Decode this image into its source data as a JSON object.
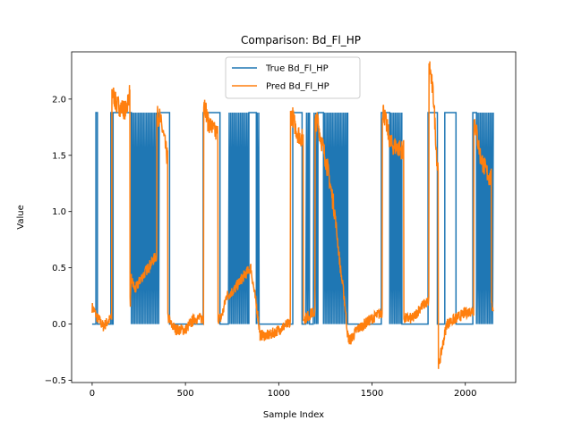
{
  "chart_data": {
    "type": "line",
    "title": "Comparison: Bd_Fl_HP",
    "xlabel": "Sample Index",
    "ylabel": "Value",
    "xlim": [
      -110,
      2270
    ],
    "ylim": [
      -0.52,
      2.42
    ],
    "xticks": [
      0,
      500,
      1000,
      1500,
      2000
    ],
    "yticks": [
      -0.5,
      0.0,
      0.5,
      1.0,
      1.5,
      2.0
    ],
    "xtick_labels": [
      "0",
      "500",
      "1000",
      "1500",
      "2000"
    ],
    "ytick_labels": [
      "−0.5",
      "0.0",
      "0.5",
      "1.0",
      "1.5",
      "2.0"
    ],
    "grid": false,
    "legend_position": "top-center",
    "series": [
      {
        "name": "True Bd_Fl_HP",
        "color": "#1f77b4",
        "kind": "binary",
        "low": 0.0,
        "high": 1.88,
        "x_start": 0,
        "x_end": 2150,
        "segments": [
          [
            0,
            20,
            "low"
          ],
          [
            20,
            28,
            "high"
          ],
          [
            28,
            100,
            "low"
          ],
          [
            100,
            108,
            "high"
          ],
          [
            108,
            112,
            "low"
          ],
          [
            112,
            210,
            "high"
          ],
          [
            210,
            360,
            "osc"
          ],
          [
            360,
            415,
            "high"
          ],
          [
            415,
            595,
            "low"
          ],
          [
            595,
            685,
            "high"
          ],
          [
            685,
            730,
            "low"
          ],
          [
            730,
            840,
            "osc"
          ],
          [
            840,
            880,
            "high"
          ],
          [
            880,
            895,
            "osc"
          ],
          [
            895,
            1075,
            "low"
          ],
          [
            1075,
            1125,
            "high"
          ],
          [
            1125,
            1145,
            "low"
          ],
          [
            1145,
            1165,
            "osc"
          ],
          [
            1165,
            1185,
            "low"
          ],
          [
            1185,
            1210,
            "osc"
          ],
          [
            1210,
            1240,
            "high"
          ],
          [
            1240,
            1370,
            "osc"
          ],
          [
            1370,
            1550,
            "low"
          ],
          [
            1550,
            1595,
            "high"
          ],
          [
            1595,
            1660,
            "osc"
          ],
          [
            1660,
            1800,
            "low"
          ],
          [
            1800,
            1850,
            "high"
          ],
          [
            1850,
            1890,
            "low"
          ],
          [
            1890,
            1950,
            "high"
          ],
          [
            1950,
            2040,
            "low"
          ],
          [
            2040,
            2060,
            "high"
          ],
          [
            2060,
            2150,
            "osc"
          ]
        ]
      },
      {
        "name": "Pred Bd_Fl_HP",
        "color": "#ff7f0e",
        "kind": "noisy",
        "x": [
          0,
          30,
          60,
          100,
          112,
          130,
          180,
          200,
          205,
          210,
          230,
          260,
          300,
          340,
          355,
          360,
          380,
          400,
          412,
          420,
          450,
          500,
          550,
          595,
          600,
          620,
          660,
          690,
          700,
          720,
          760,
          800,
          850,
          890,
          900,
          950,
          1000,
          1050,
          1075,
          1080,
          1100,
          1125,
          1140,
          1180,
          1210,
          1220,
          1260,
          1300,
          1330,
          1350,
          1370,
          1380,
          1420,
          1500,
          1550,
          1560,
          1600,
          1660,
          1680,
          1720,
          1760,
          1800,
          1810,
          1830,
          1850,
          1860,
          1900,
          1950,
          2000,
          2040,
          2050,
          2080,
          2100,
          2130,
          2150
        ],
        "y": [
          0.15,
          0.05,
          -0.02,
          0.05,
          2.05,
          1.95,
          1.9,
          2.05,
          0.2,
          0.4,
          0.3,
          0.4,
          0.5,
          0.6,
          1.85,
          1.85,
          1.7,
          1.5,
          0.05,
          0.0,
          -0.05,
          -0.05,
          0.05,
          0.05,
          2.0,
          1.8,
          1.7,
          0.05,
          0.1,
          0.25,
          0.3,
          0.4,
          0.5,
          0.05,
          -0.1,
          -0.1,
          -0.05,
          0.0,
          1.85,
          1.8,
          1.7,
          1.65,
          0.05,
          0.1,
          1.8,
          1.7,
          1.4,
          1.0,
          0.5,
          0.25,
          -0.1,
          -0.15,
          -0.05,
          0.05,
          0.1,
          1.9,
          1.6,
          1.55,
          0.05,
          0.05,
          0.15,
          0.2,
          2.28,
          2.0,
          1.4,
          -0.35,
          0.0,
          0.05,
          0.1,
          0.12,
          1.8,
          1.5,
          1.4,
          1.3,
          0.15
        ]
      }
    ]
  }
}
